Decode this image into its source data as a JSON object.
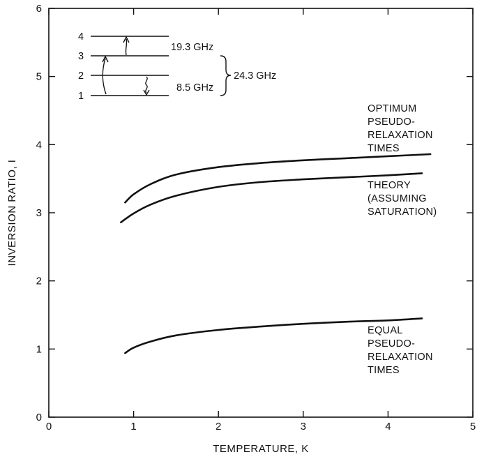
{
  "chart_data": {
    "type": "line",
    "title": "",
    "xlabel": "TEMPERATURE, K",
    "ylabel": "INVERSION RATIO, I",
    "xlim": [
      0,
      5
    ],
    "ylim": [
      0,
      6
    ],
    "xticks": [
      0,
      1,
      2,
      3,
      4,
      5
    ],
    "yticks": [
      0,
      1,
      2,
      3,
      4,
      5,
      6
    ],
    "grid": false,
    "series": [
      {
        "label_lines": [
          "OPTIMUM",
          "PSEUDO-",
          "RELAXATION",
          "TIMES"
        ],
        "x": [
          0.9,
          1.0,
          1.2,
          1.5,
          2.0,
          2.5,
          3.0,
          3.5,
          4.0,
          4.5
        ],
        "y": [
          3.15,
          3.27,
          3.42,
          3.56,
          3.67,
          3.73,
          3.77,
          3.8,
          3.83,
          3.86
        ]
      },
      {
        "label_lines": [
          "THEORY",
          "(ASSUMING",
          "SATURATION)"
        ],
        "x": [
          0.85,
          1.0,
          1.2,
          1.5,
          2.0,
          2.5,
          3.0,
          3.5,
          4.0,
          4.4
        ],
        "y": [
          2.86,
          2.99,
          3.12,
          3.25,
          3.38,
          3.45,
          3.49,
          3.52,
          3.55,
          3.58
        ]
      },
      {
        "label_lines": [
          "EQUAL",
          "PSEUDO-",
          "RELAXATION",
          "TIMES"
        ],
        "x": [
          0.9,
          1.0,
          1.2,
          1.5,
          2.0,
          2.5,
          3.0,
          3.5,
          4.0,
          4.4
        ],
        "y": [
          0.94,
          1.02,
          1.11,
          1.2,
          1.28,
          1.33,
          1.37,
          1.4,
          1.42,
          1.45
        ]
      }
    ],
    "inset": {
      "levels": [
        "1",
        "2",
        "3",
        "4"
      ],
      "transitions": [
        "19.3 GHz",
        "8.5 GHz",
        "24.3 GHz"
      ]
    }
  }
}
